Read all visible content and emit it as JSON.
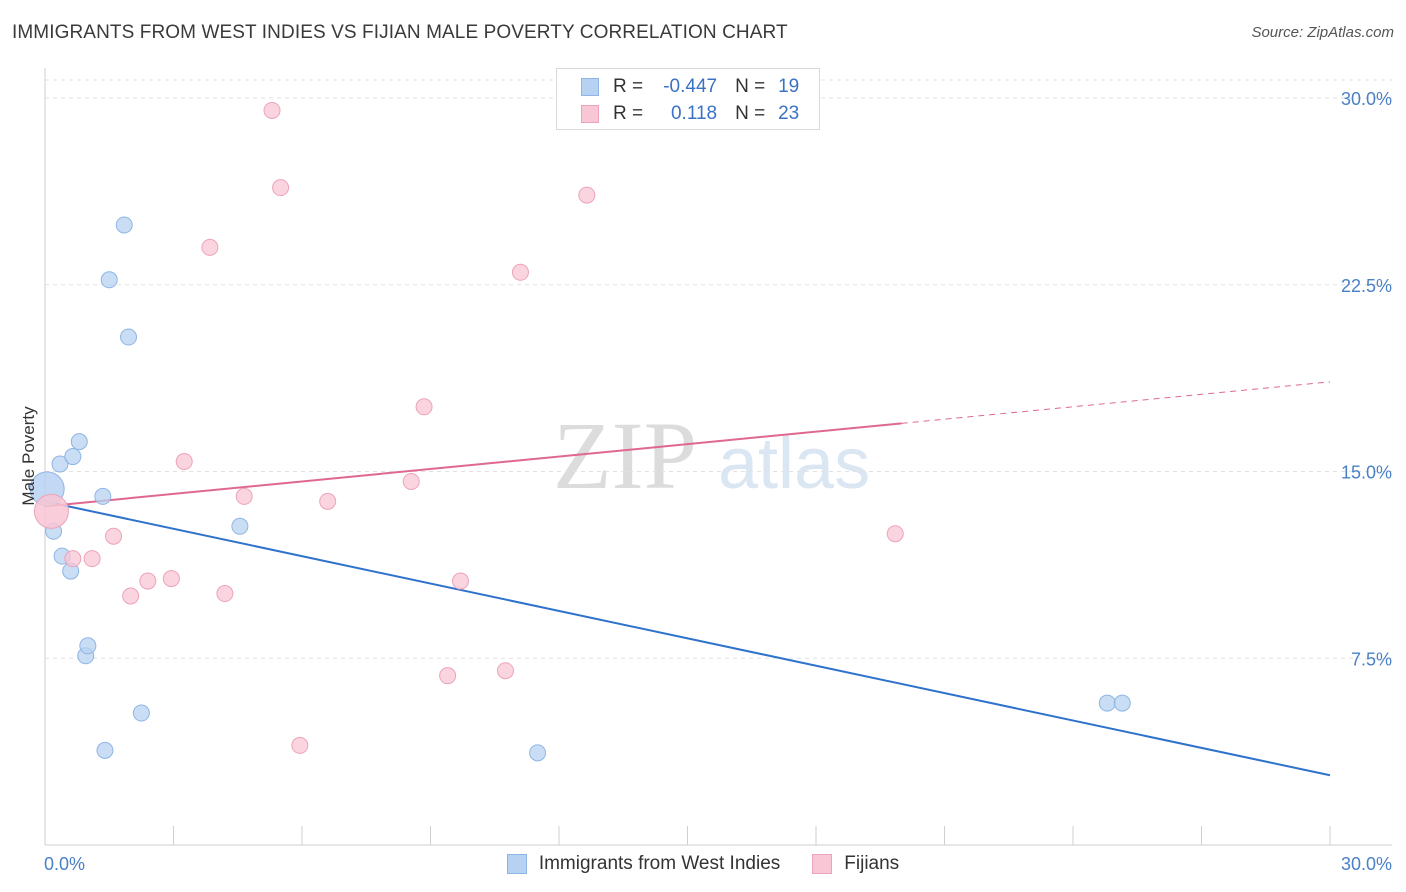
{
  "header": {
    "title": "IMMIGRANTS FROM WEST INDIES VS FIJIAN MALE POVERTY CORRELATION CHART",
    "source": "Source: ZipAtlas.com"
  },
  "watermark": {
    "zip": "ZIP",
    "atlas": "atlas"
  },
  "colors": {
    "blue_fill": "#b7d1f2",
    "blue_stroke": "#8fb5e4",
    "blue_line": "#2f72cc",
    "pink_fill": "#f8c6d4",
    "pink_stroke": "#eda3b9",
    "pink_line": "#e0688f",
    "grid": "#e2e2e2",
    "tick_text": "#4a80c8"
  },
  "legend": {
    "rows": [
      {
        "r_label": "R =",
        "r_value": "-0.447",
        "n_label": "N =",
        "n_value": "19"
      },
      {
        "r_label": "R =",
        "r_value": "0.118",
        "n_label": "N =",
        "n_value": "23"
      }
    ]
  },
  "chart_data": {
    "type": "scatter",
    "title": "IMMIGRANTS FROM WEST INDIES VS FIJIAN MALE POVERTY CORRELATION CHART",
    "xlabel": "",
    "ylabel": "Male Poverty",
    "xlim": [
      0,
      30
    ],
    "ylim": [
      0,
      30
    ],
    "x_tick_labels": [
      "0.0%",
      "30.0%"
    ],
    "y_ticks": [
      7.5,
      15.0,
      22.5,
      30.0
    ],
    "y_tick_labels": [
      "7.5%",
      "15.0%",
      "22.5%",
      "30.0%"
    ],
    "grid": true,
    "legend_position": "bottom",
    "series": [
      {
        "name": "Immigrants from West Indies",
        "color": "#b7d1f2",
        "r": -0.447,
        "n": 19,
        "points": [
          {
            "x": 0.05,
            "y": 14.3,
            "big": true
          },
          {
            "x": 0.2,
            "y": 12.6
          },
          {
            "x": 0.35,
            "y": 15.3
          },
          {
            "x": 0.4,
            "y": 11.6
          },
          {
            "x": 0.6,
            "y": 11.0
          },
          {
            "x": 0.65,
            "y": 15.6
          },
          {
            "x": 0.8,
            "y": 16.2
          },
          {
            "x": 0.95,
            "y": 7.6
          },
          {
            "x": 1.0,
            "y": 8.0
          },
          {
            "x": 1.35,
            "y": 14.0
          },
          {
            "x": 1.4,
            "y": 3.8
          },
          {
            "x": 1.5,
            "y": 22.7
          },
          {
            "x": 1.85,
            "y": 24.9
          },
          {
            "x": 1.95,
            "y": 20.4
          },
          {
            "x": 2.25,
            "y": 5.3
          },
          {
            "x": 4.55,
            "y": 12.8
          },
          {
            "x": 11.5,
            "y": 3.7
          },
          {
            "x": 24.8,
            "y": 5.7
          },
          {
            "x": 25.15,
            "y": 5.7
          }
        ],
        "trend": {
          "x": [
            0,
            30
          ],
          "y": [
            13.8,
            2.8
          ],
          "dashed_from": null
        }
      },
      {
        "name": "Fijians",
        "color": "#f8c6d4",
        "r": 0.118,
        "n": 23,
        "points": [
          {
            "x": 0.15,
            "y": 13.4,
            "big": true
          },
          {
            "x": 0.65,
            "y": 11.5
          },
          {
            "x": 1.1,
            "y": 11.5
          },
          {
            "x": 1.6,
            "y": 12.4
          },
          {
            "x": 2.0,
            "y": 10.0
          },
          {
            "x": 2.4,
            "y": 10.6
          },
          {
            "x": 2.95,
            "y": 10.7
          },
          {
            "x": 3.25,
            "y": 15.4
          },
          {
            "x": 3.85,
            "y": 24.0
          },
          {
            "x": 4.2,
            "y": 10.1
          },
          {
            "x": 4.65,
            "y": 14.0
          },
          {
            "x": 5.3,
            "y": 29.5
          },
          {
            "x": 5.5,
            "y": 26.4
          },
          {
            "x": 5.95,
            "y": 4.0
          },
          {
            "x": 6.6,
            "y": 13.8
          },
          {
            "x": 8.55,
            "y": 14.6
          },
          {
            "x": 8.85,
            "y": 17.6
          },
          {
            "x": 9.4,
            "y": 6.8
          },
          {
            "x": 9.7,
            "y": 10.6
          },
          {
            "x": 10.75,
            "y": 7.0
          },
          {
            "x": 11.1,
            "y": 23.0
          },
          {
            "x": 12.65,
            "y": 26.1
          },
          {
            "x": 19.85,
            "y": 12.5
          }
        ],
        "trend": {
          "x": [
            0,
            30
          ],
          "y": [
            13.6,
            18.6
          ],
          "solid_until_x": 20.0
        }
      }
    ]
  }
}
